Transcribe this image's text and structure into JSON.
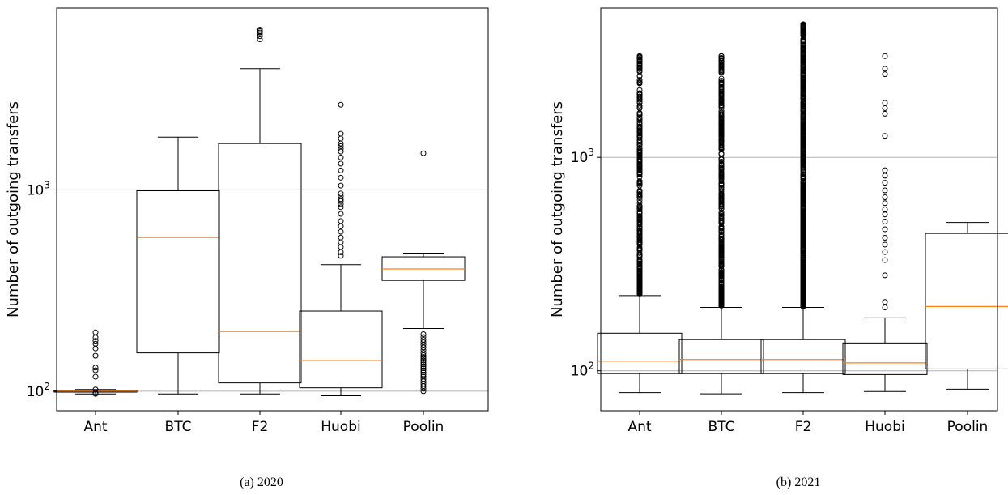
{
  "chart_data": [
    {
      "type": "box",
      "caption": "(a)  2020",
      "ylabel": "Number of outgoing transfers",
      "yscale": "log",
      "ylim": [
        80,
        8000
      ],
      "yticks": [
        {
          "value": 100,
          "base": "10",
          "exp": "2"
        },
        {
          "value": 1000,
          "base": "10",
          "exp": "3"
        }
      ],
      "grid": "horizontal",
      "colors": {
        "box": "#000000",
        "median": "#ff7f0e",
        "grid": "#b0b0b0"
      },
      "categories": [
        "Ant",
        "BTC",
        "F2",
        "Huobi",
        "Poolin"
      ],
      "boxes": [
        {
          "name": "Ant",
          "whislo": 97,
          "q1": 99,
          "med": 100,
          "q3": 101,
          "whishi": 102,
          "fliers": [
            97,
            98,
            102,
            118,
            127,
            131,
            150,
            163,
            172,
            178,
            185,
            196
          ]
        },
        {
          "name": "BTC",
          "whislo": 97,
          "q1": 155,
          "med": 580,
          "q3": 990,
          "whishi": 1830,
          "fliers": []
        },
        {
          "name": "F2",
          "whislo": 97,
          "q1": 110,
          "med": 198,
          "q3": 1700,
          "whishi": 4000,
          "fliers": [
            5600,
            5800,
            5950,
            6050,
            6150,
            6250
          ]
        },
        {
          "name": "Huobi",
          "whislo": 95,
          "q1": 104,
          "med": 142,
          "q3": 250,
          "whishi": 425,
          "fliers": [
            470,
            490,
            520,
            550,
            580,
            620,
            660,
            700,
            760,
            820,
            850,
            880,
            900,
            930,
            960,
            1050,
            1150,
            1250,
            1350,
            1450,
            1550,
            1600,
            1650,
            1700,
            1800,
            1900,
            2650
          ]
        },
        {
          "name": "Poolin",
          "whislo": 205,
          "q1": 355,
          "med": 405,
          "q3": 465,
          "whishi": 485,
          "fliers": [
            100,
            103,
            106,
            109,
            112,
            115,
            118,
            121,
            124,
            127,
            130,
            133,
            136,
            139,
            142,
            145,
            148,
            151,
            155,
            160,
            165,
            170,
            175,
            180,
            186,
            192,
            1520
          ]
        }
      ]
    },
    {
      "type": "box",
      "caption": "(b)  2021",
      "ylabel": "Number of outgoing transfers",
      "yscale": "log",
      "ylim": [
        65,
        5000
      ],
      "yticks": [
        {
          "value": 100,
          "base": "10",
          "exp": "2"
        },
        {
          "value": 1000,
          "base": "10",
          "exp": "3"
        }
      ],
      "grid": "horizontal",
      "colors": {
        "box": "#000000",
        "median": "#ff7f0e",
        "grid": "#b0b0b0"
      },
      "categories": [
        "Ant",
        "BTC",
        "F2",
        "Huobi",
        "Poolin"
      ],
      "boxes": [
        {
          "name": "Ant",
          "whislo": 79,
          "q1": 97,
          "med": 111,
          "q3": 150,
          "whishi": 225,
          "flier_range": [
            230,
            2980
          ],
          "flier_density": 300,
          "fliers": []
        },
        {
          "name": "BTC",
          "whislo": 78,
          "q1": 97,
          "med": 113,
          "q3": 140,
          "whishi": 198,
          "flier_range": [
            202,
            2980
          ],
          "flier_density": 380,
          "fliers": []
        },
        {
          "name": "F2",
          "whislo": 79,
          "q1": 97,
          "med": 113,
          "q3": 140,
          "whishi": 198,
          "flier_range": [
            200,
            4200
          ],
          "flier_density": 700,
          "fliers": []
        },
        {
          "name": "Huobi",
          "whislo": 80,
          "q1": 96,
          "med": 109,
          "q3": 135,
          "whishi": 177,
          "fliers": [
            198,
            210,
            280,
            330,
            360,
            390,
            420,
            460,
            500,
            540,
            570,
            610,
            650,
            700,
            760,
            820,
            870,
            1260,
            1600,
            1700,
            1800,
            2450,
            2600,
            2980
          ]
        },
        {
          "name": "Poolin",
          "whislo": 82,
          "q1": 102,
          "med": 200,
          "q3": 440,
          "whishi": 495,
          "fliers": []
        }
      ]
    }
  ]
}
